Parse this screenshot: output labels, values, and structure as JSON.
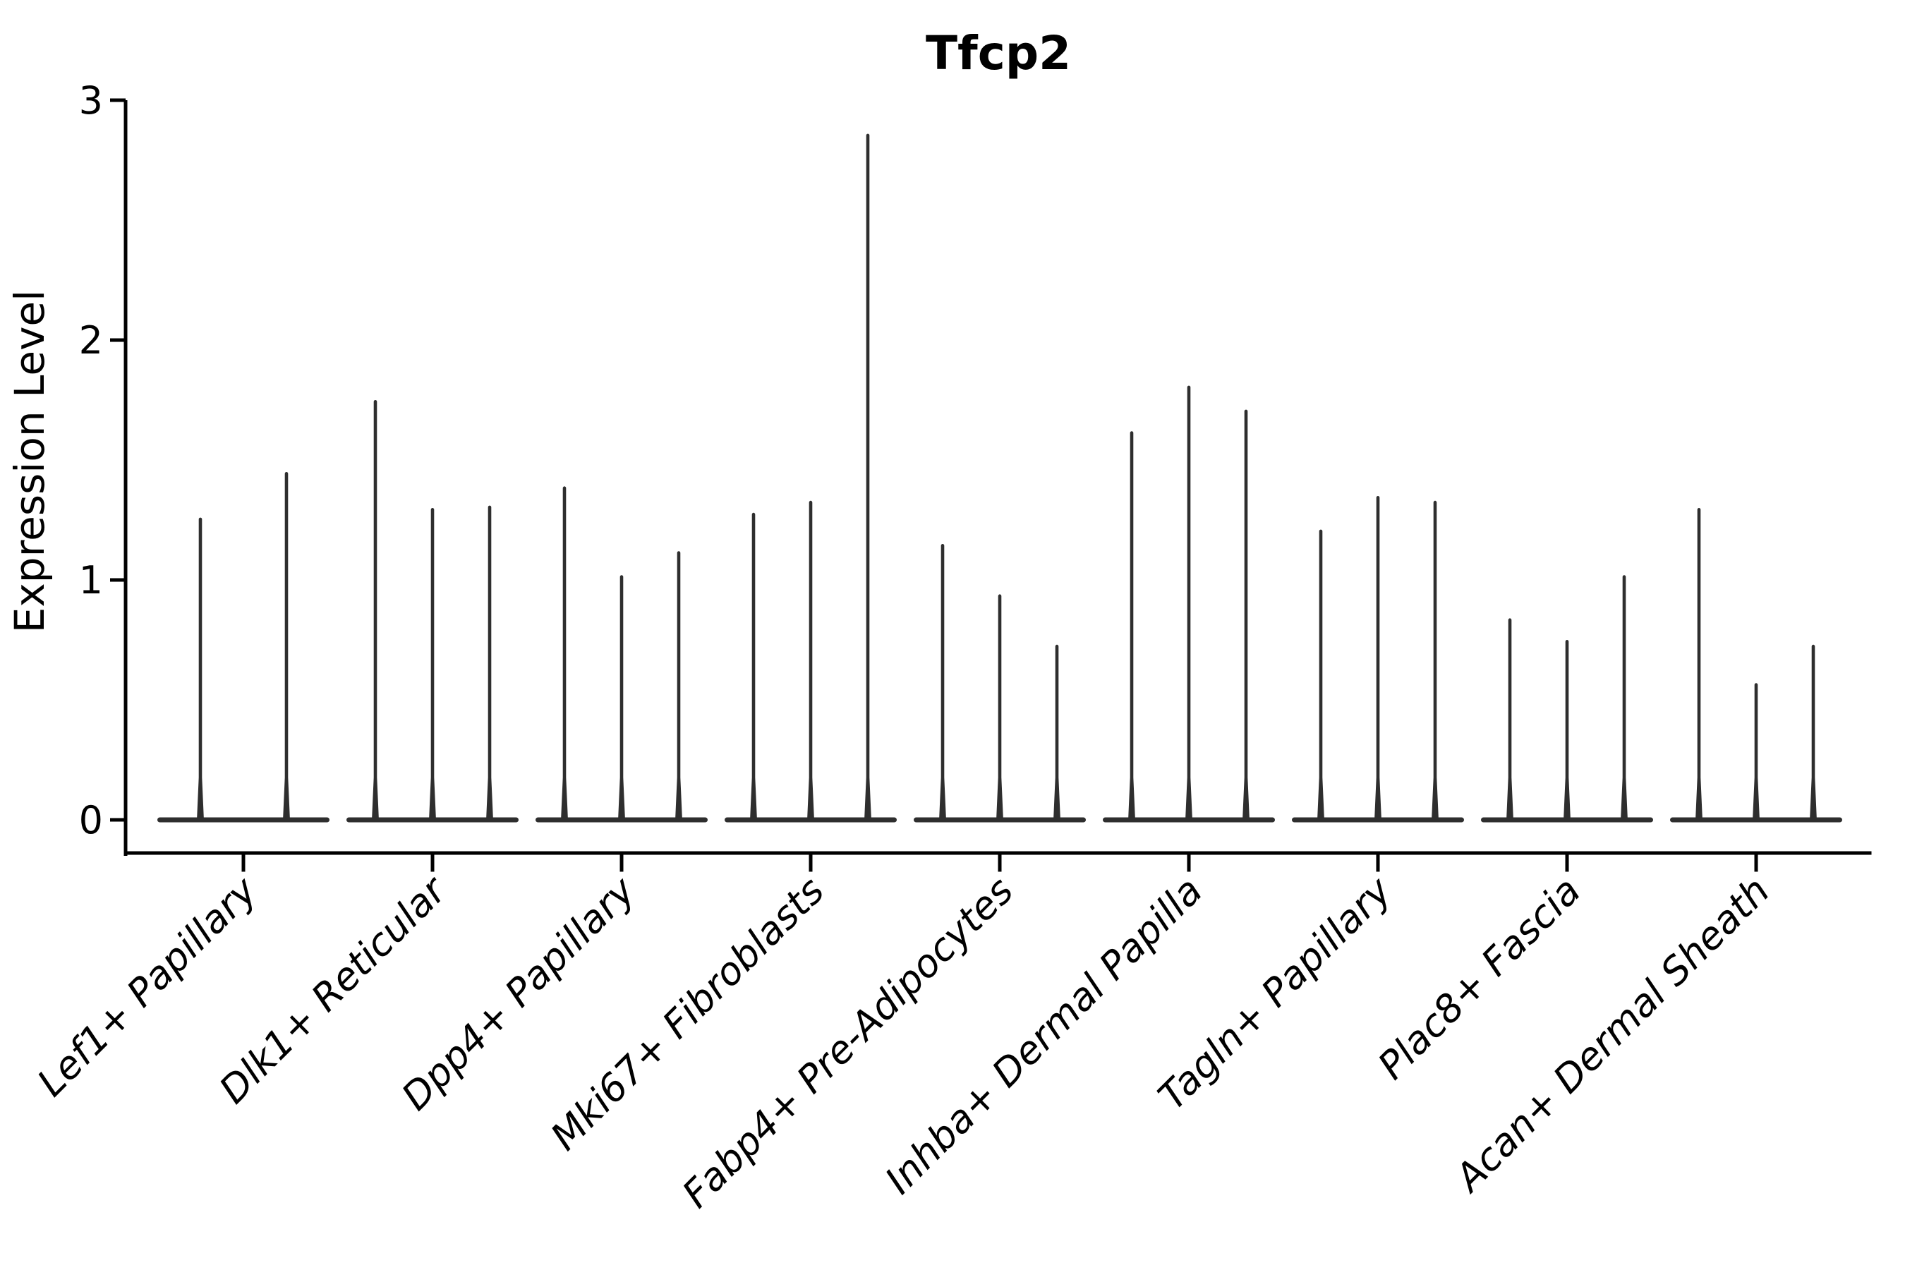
{
  "figure": {
    "title": "Tfcp2",
    "ylabel": "Expression Level"
  },
  "colors": {
    "violin": "#2e2e2e",
    "axis": "#000000",
    "background": "#ffffff"
  },
  "chart_data": {
    "type": "violin",
    "title": "Tfcp2",
    "xlabel": "",
    "ylabel": "Expression Level",
    "ylim": [
      -0.14,
      3.0
    ],
    "yticks": [
      0,
      1,
      2,
      3
    ],
    "grid": false,
    "legend": "none",
    "x_tick_rotation_deg": 45,
    "categories": [
      "Lef1+ Papillary",
      "Dlk1+ Reticular",
      "Dpp4+ Papillary",
      "Mki67+ Fibroblasts",
      "Fabp4+ Pre-Adipocytes",
      "Inhba+ Dermal Papilla",
      "Tagln+ Papillary",
      "Plac8+ Fascia",
      "Acan+ Dermal Sheath"
    ],
    "series": [
      {
        "name": "Lef1+ Papillary",
        "spike_maxima": [
          1.26,
          1.45
        ]
      },
      {
        "name": "Dlk1+ Reticular",
        "spike_maxima": [
          1.75,
          1.3,
          1.31
        ]
      },
      {
        "name": "Dpp4+ Papillary",
        "spike_maxima": [
          1.39,
          1.02,
          1.12
        ]
      },
      {
        "name": "Mki67+ Fibroblasts",
        "spike_maxima": [
          1.28,
          1.33,
          2.86
        ]
      },
      {
        "name": "Fabp4+ Pre-Adipocytes",
        "spike_maxima": [
          1.15,
          0.94,
          0.73
        ]
      },
      {
        "name": "Inhba+ Dermal Papilla",
        "spike_maxima": [
          1.62,
          1.81,
          1.71
        ]
      },
      {
        "name": "Tagln+ Papillary",
        "spike_maxima": [
          1.21,
          1.35,
          1.33
        ]
      },
      {
        "name": "Plac8+ Fascia",
        "spike_maxima": [
          0.84,
          0.75,
          1.02
        ]
      },
      {
        "name": "Acan+ Dermal Sheath",
        "spike_maxima": [
          1.3,
          0.57,
          0.73
        ]
      }
    ],
    "note": "Each category shows a violin per sample collapsed to a flat base at 0 with a thin density spike up to its maximum expression value."
  }
}
